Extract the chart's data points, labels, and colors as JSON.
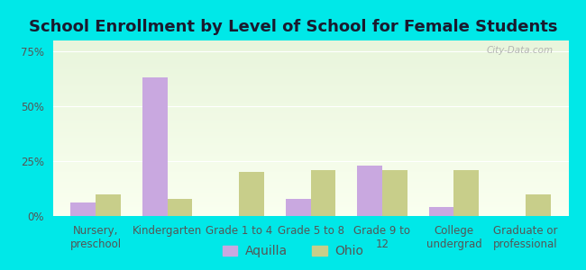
{
  "title": "School Enrollment by Level of School for Female Students",
  "categories": [
    "Nursery,\npreschool",
    "Kindergarten",
    "Grade 1 to 4",
    "Grade 5 to 8",
    "Grade 9 to\n12",
    "College\nundergrad",
    "Graduate or\nprofessional"
  ],
  "aquilla_values": [
    6,
    63,
    0,
    8,
    23,
    4,
    0
  ],
  "ohio_values": [
    10,
    8,
    20,
    21,
    21,
    21,
    10
  ],
  "aquilla_color": "#c9a8e0",
  "ohio_color": "#c8ce8a",
  "bar_width": 0.35,
  "ylim": [
    0,
    80
  ],
  "yticks": [
    0,
    25,
    50,
    75
  ],
  "ytick_labels": [
    "0%",
    "25%",
    "50%",
    "75%"
  ],
  "legend_labels": [
    "Aquilla",
    "Ohio"
  ],
  "background_color": "#00e8e8",
  "title_color": "#1a1a2e",
  "tick_color": "#555555",
  "title_fontsize": 13,
  "axis_fontsize": 8.5,
  "legend_fontsize": 10,
  "watermark": "City-Data.com"
}
